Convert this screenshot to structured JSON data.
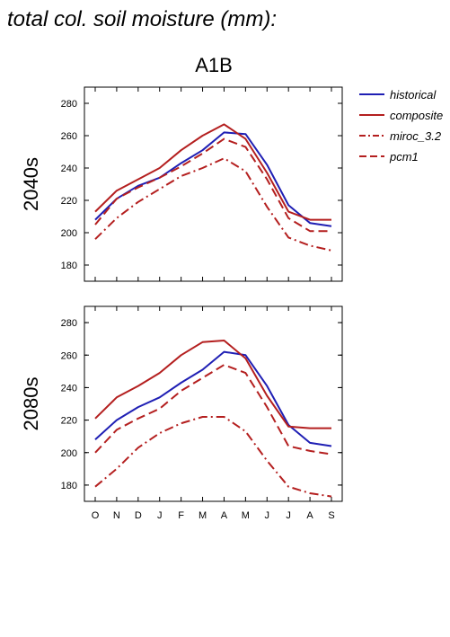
{
  "figure_title": "total col. soil moisture (mm):",
  "scenario_title": "A1B",
  "colors": {
    "historical": "#1f1fb4",
    "composite": "#b41f1f",
    "miroc_3.2": "#b41f1f",
    "pcm1": "#b41f1f"
  },
  "legend": [
    {
      "name": "historical",
      "dash": "solid"
    },
    {
      "name": "composite",
      "dash": "solid"
    },
    {
      "name": "miroc_3.2",
      "dash": "dashdot"
    },
    {
      "name": "pcm1",
      "dash": "dashed"
    }
  ],
  "chart_data": [
    {
      "type": "line",
      "panel_label": "2040s",
      "categories": [
        "O",
        "N",
        "D",
        "J",
        "F",
        "M",
        "A",
        "M",
        "J",
        "J",
        "A",
        "S"
      ],
      "ylim": [
        170,
        290
      ],
      "yticks": [
        180,
        200,
        220,
        240,
        260,
        280
      ],
      "grid": false,
      "legend_placement": "right",
      "series": [
        {
          "name": "historical",
          "values": [
            208,
            221,
            229,
            234,
            243,
            251,
            262,
            261,
            242,
            217,
            206,
            204
          ]
        },
        {
          "name": "composite",
          "values": [
            213,
            226,
            233,
            240,
            251,
            260,
            267,
            258,
            237,
            213,
            208,
            208
          ]
        },
        {
          "name": "miroc_3.2",
          "values": [
            196,
            209,
            219,
            227,
            235,
            240,
            246,
            238,
            216,
            197,
            192,
            189
          ]
        },
        {
          "name": "pcm1",
          "values": [
            205,
            221,
            228,
            234,
            241,
            249,
            258,
            253,
            233,
            209,
            201,
            201
          ]
        }
      ]
    },
    {
      "type": "line",
      "panel_label": "2080s",
      "categories": [
        "O",
        "N",
        "D",
        "J",
        "F",
        "M",
        "A",
        "M",
        "J",
        "J",
        "A",
        "S"
      ],
      "ylim": [
        170,
        290
      ],
      "yticks": [
        180,
        200,
        220,
        240,
        260,
        280
      ],
      "grid": false,
      "legend_placement": "right",
      "series": [
        {
          "name": "historical",
          "values": [
            208,
            220,
            228,
            234,
            243,
            251,
            262,
            260,
            241,
            217,
            206,
            204
          ]
        },
        {
          "name": "composite",
          "values": [
            221,
            234,
            241,
            249,
            260,
            268,
            269,
            258,
            235,
            216,
            215,
            215
          ]
        },
        {
          "name": "miroc_3.2",
          "values": [
            179,
            190,
            203,
            212,
            218,
            222,
            222,
            213,
            195,
            179,
            175,
            173
          ]
        },
        {
          "name": "pcm1",
          "values": [
            200,
            214,
            221,
            227,
            238,
            246,
            254,
            249,
            228,
            204,
            201,
            199
          ]
        }
      ]
    }
  ]
}
